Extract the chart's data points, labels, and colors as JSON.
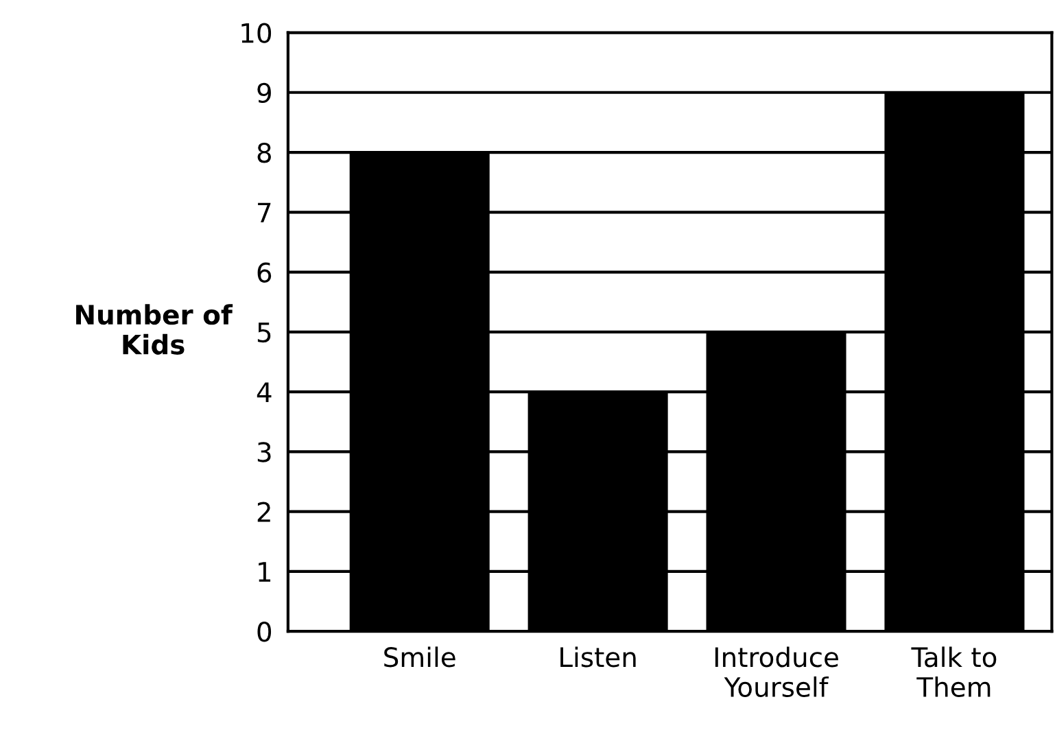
{
  "chart_data": {
    "type": "bar",
    "ylabel": "Number of\nKids",
    "categories": [
      "Smile",
      "Listen",
      "Introduce\nYourself",
      "Talk to\nThem"
    ],
    "values": [
      8,
      4,
      5,
      9
    ],
    "color": "#000000",
    "ylim": [
      0,
      10
    ],
    "yticks": [
      0,
      1,
      2,
      3,
      4,
      5,
      6,
      7,
      8,
      9,
      10
    ],
    "grid": "y",
    "legend": false
  }
}
